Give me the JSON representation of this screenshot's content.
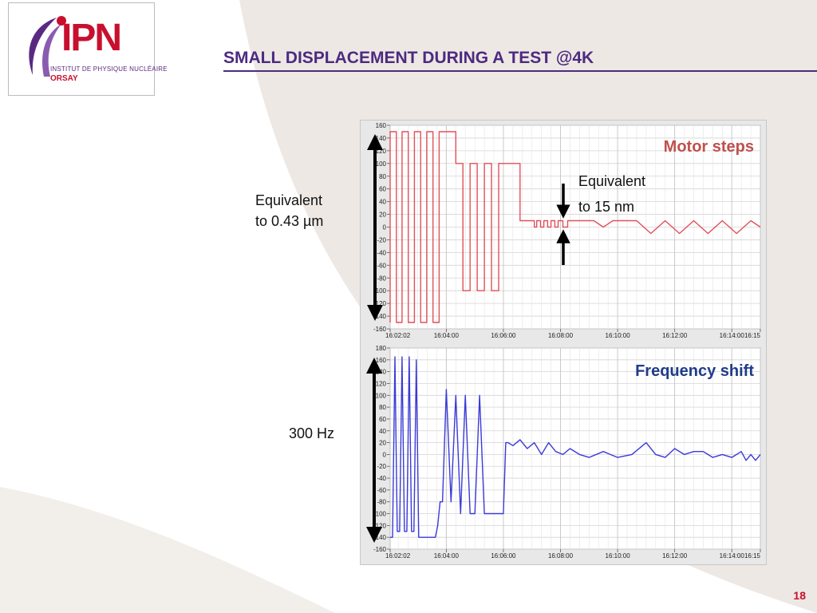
{
  "logo": {
    "name": "IPN",
    "subtitle": "INSTITUT DE PHYSIQUE NUCLÉAIRE",
    "city": "ORSAY"
  },
  "slide": {
    "title": "SMALL DISPLACEMENT DURING A TEST @4K",
    "page_number": "18",
    "label_motor_range": [
      "Equivalent",
      "to 0.43 µm"
    ],
    "label_step": [
      "Equivalent",
      "to 15 nm"
    ],
    "label_freq_range": "300 Hz"
  },
  "colors": {
    "brand_purple": "#4d2a80",
    "brand_red": "#c8102e",
    "motor_series": "#e0505a",
    "freq_series": "#3a3ad8",
    "motor_label": "#c0504d",
    "freq_label": "#1f3c88"
  },
  "chart_data": [
    {
      "type": "line",
      "label": "Motor steps",
      "x_ticks": [
        "16:02:02",
        "16:04:00",
        "16:06:00",
        "16:08:00",
        "16:10:00",
        "16:12:00",
        "16:14:00",
        "16:15"
      ],
      "y_ticks": [
        "160",
        "140",
        "120",
        "100",
        "80",
        "60",
        "40",
        "20",
        "0",
        "-20",
        "-40",
        "-60",
        "-80",
        "-100",
        "-120",
        "-140",
        "-160"
      ],
      "ylim": [
        -160,
        160
      ],
      "xlim": [
        "16:02:02",
        "16:15:00"
      ],
      "grid": true,
      "series": [
        {
          "x": [
            "16:02:02",
            "16:02:02",
            "16:02:15",
            "16:02:15",
            "16:02:27",
            "16:02:27",
            "16:02:40",
            "16:02:40",
            "16:02:53",
            "16:02:53",
            "16:03:06",
            "16:03:06",
            "16:03:19",
            "16:03:19",
            "16:03:32",
            "16:03:32",
            "16:03:45",
            "16:03:45",
            "16:04:20",
            "16:04:20",
            "16:04:35",
            "16:04:35",
            "16:04:50",
            "16:04:50",
            "16:05:05",
            "16:05:05",
            "16:05:20",
            "16:05:20",
            "16:05:35",
            "16:05:35",
            "16:05:50",
            "16:05:50",
            "16:06:05",
            "16:06:05",
            "16:06:35",
            "16:06:35",
            "16:07:05",
            "16:07:05",
            "16:07:10",
            "16:07:10",
            "16:07:18",
            "16:07:18",
            "16:07:25",
            "16:07:25",
            "16:07:33",
            "16:07:33",
            "16:07:40",
            "16:07:40",
            "16:07:48",
            "16:07:48",
            "16:07:55",
            "16:07:55",
            "16:08:05",
            "16:08:05",
            "16:08:15",
            "16:08:15",
            "16:09:10",
            "16:09:30",
            "16:09:50",
            "16:10:40",
            "16:11:10",
            "16:11:40",
            "16:12:10",
            "16:12:40",
            "16:13:10",
            "16:13:40",
            "16:14:10",
            "16:14:40",
            "16:15:00"
          ],
          "y": [
            -150,
            150,
            150,
            -150,
            -150,
            150,
            150,
            -150,
            -150,
            150,
            150,
            -150,
            -150,
            150,
            150,
            -150,
            -150,
            150,
            150,
            100,
            100,
            -100,
            -100,
            100,
            100,
            -100,
            -100,
            100,
            100,
            -100,
            -100,
            100,
            100,
            100,
            100,
            10,
            10,
            0,
            0,
            10,
            10,
            0,
            0,
            10,
            10,
            0,
            0,
            10,
            10,
            0,
            0,
            10,
            10,
            0,
            0,
            10,
            10,
            0,
            10,
            10,
            -10,
            10,
            -10,
            10,
            -10,
            10,
            -10,
            10,
            0
          ]
        }
      ]
    },
    {
      "type": "line",
      "label": "Frequency shift",
      "x_ticks": [
        "16:02:02",
        "16:04:00",
        "16:06:00",
        "16:08:00",
        "16:10:00",
        "16:12:00",
        "16:14:00",
        "16:15"
      ],
      "y_ticks": [
        "180",
        "160",
        "140",
        "120",
        "100",
        "80",
        "60",
        "40",
        "20",
        "0",
        "-20",
        "-40",
        "-60",
        "-80",
        "-100",
        "-120",
        "-140",
        "-160"
      ],
      "ylim": [
        -160,
        180
      ],
      "xlim": [
        "16:02:02",
        "16:15:00"
      ],
      "grid": true,
      "series": [
        {
          "x": [
            "16:02:02",
            "16:02:07",
            "16:02:12",
            "16:02:17",
            "16:02:22",
            "16:02:27",
            "16:02:32",
            "16:02:37",
            "16:02:42",
            "16:02:47",
            "16:02:52",
            "16:02:57",
            "16:03:02",
            "16:03:07",
            "16:03:12",
            "16:03:17",
            "16:03:22",
            "16:03:27",
            "16:03:32",
            "16:03:37",
            "16:03:42",
            "16:03:47",
            "16:03:52",
            "16:04:00",
            "16:04:10",
            "16:04:20",
            "16:04:30",
            "16:04:40",
            "16:04:50",
            "16:05:00",
            "16:05:10",
            "16:05:20",
            "16:05:30",
            "16:05:40",
            "16:05:50",
            "16:06:00",
            "16:06:05",
            "16:06:10",
            "16:06:20",
            "16:06:35",
            "16:06:50",
            "16:07:05",
            "16:07:20",
            "16:07:35",
            "16:07:50",
            "16:08:05",
            "16:08:20",
            "16:08:40",
            "16:09:00",
            "16:09:30",
            "16:10:00",
            "16:10:30",
            "16:11:00",
            "16:11:20",
            "16:11:40",
            "16:12:00",
            "16:12:20",
            "16:12:40",
            "16:13:00",
            "16:13:20",
            "16:13:40",
            "16:14:00",
            "16:14:20",
            "16:14:30",
            "16:14:40",
            "16:14:50",
            "16:15:00"
          ],
          "y": [
            -140,
            -140,
            165,
            -130,
            -130,
            165,
            -130,
            -130,
            165,
            -130,
            -130,
            160,
            -140,
            -140,
            -140,
            -140,
            -140,
            -140,
            -140,
            -140,
            -120,
            -80,
            -80,
            110,
            -80,
            100,
            -100,
            100,
            -100,
            -100,
            100,
            -100,
            -100,
            -100,
            -100,
            -100,
            20,
            20,
            15,
            25,
            10,
            20,
            0,
            20,
            5,
            0,
            10,
            0,
            -5,
            5,
            -5,
            0,
            20,
            0,
            -5,
            10,
            0,
            5,
            5,
            -5,
            0,
            -5,
            5,
            -10,
            0,
            -10,
            0
          ]
        }
      ]
    }
  ]
}
